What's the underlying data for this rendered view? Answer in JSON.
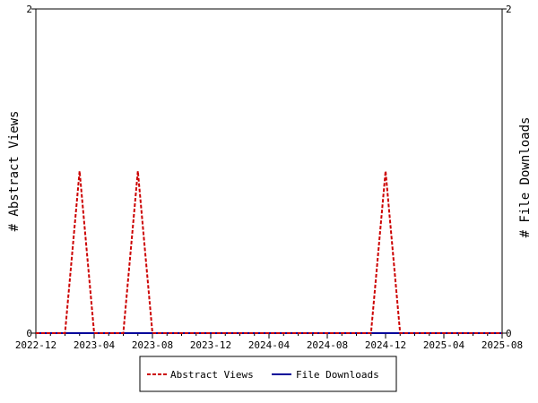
{
  "chart_data": {
    "type": "line",
    "title": "",
    "ylabel_left": "# Abstract Views",
    "ylabel_right": "# File Downloads",
    "ylim_left": [
      0,
      2
    ],
    "ylim_right": [
      0,
      2
    ],
    "y_ticks_left": [
      "0",
      "2"
    ],
    "y_ticks_right": [
      "0",
      "2"
    ],
    "x_tick_labels": [
      "2022-12",
      "2023-04",
      "2023-08",
      "2023-12",
      "2024-04",
      "2024-08",
      "2024-12",
      "2025-04",
      "2025-08"
    ],
    "x_range": [
      "2022-12",
      "2025-08"
    ],
    "legend_position": "bottom-center",
    "series": [
      {
        "name": "Abstract Views",
        "axis": "left",
        "color": "#cc0000",
        "style": "dashed",
        "points": [
          {
            "x": "2022-12",
            "y": 0
          },
          {
            "x": "2023-02",
            "y": 0
          },
          {
            "x": "2023-03",
            "y": 1
          },
          {
            "x": "2023-04",
            "y": 0
          },
          {
            "x": "2023-06",
            "y": 0
          },
          {
            "x": "2023-07",
            "y": 1
          },
          {
            "x": "2023-08",
            "y": 0
          },
          {
            "x": "2024-11",
            "y": 0
          },
          {
            "x": "2024-12",
            "y": 1
          },
          {
            "x": "2025-01",
            "y": 0
          },
          {
            "x": "2025-08",
            "y": 0
          }
        ]
      },
      {
        "name": "File Downloads",
        "axis": "right",
        "color": "#000099",
        "style": "solid",
        "points": [
          {
            "x": "2022-12",
            "y": 0
          },
          {
            "x": "2025-08",
            "y": 0
          }
        ]
      }
    ]
  }
}
